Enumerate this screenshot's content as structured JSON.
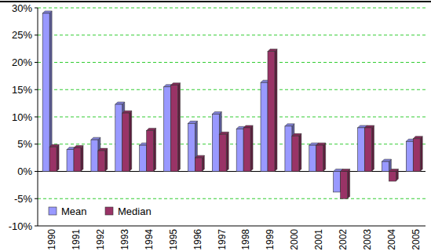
{
  "chart_data": {
    "type": "bar",
    "categories": [
      "1990",
      "1991",
      "1992",
      "1993",
      "1994",
      "1995",
      "1996",
      "1997",
      "1998",
      "1999",
      "2000",
      "2001",
      "2002",
      "2003",
      "2004",
      "2005"
    ],
    "series": [
      {
        "name": "Mean",
        "color": "#9999ff",
        "values": [
          29,
          4,
          5.8,
          12.3,
          4.8,
          15.5,
          8.8,
          10.5,
          7.8,
          16.3,
          8.3,
          4.8,
          -3.8,
          8,
          1.8,
          5.5
        ]
      },
      {
        "name": "Median",
        "color": "#993366",
        "values": [
          4.5,
          4.3,
          3.8,
          10.7,
          7.5,
          15.8,
          2.5,
          6.8,
          8,
          22,
          6.5,
          4.8,
          -5,
          8,
          -1.8,
          6
        ]
      }
    ],
    "ylim": [
      -10,
      30
    ],
    "yticks": [
      {
        "value": -10,
        "label": "-10%"
      },
      {
        "value": -5,
        "label": "-5%"
      },
      {
        "value": 0,
        "label": "0%"
      },
      {
        "value": 5,
        "label": "5%"
      },
      {
        "value": 10,
        "label": "10%"
      },
      {
        "value": 15,
        "label": "15%"
      },
      {
        "value": 20,
        "label": "20%"
      },
      {
        "value": 25,
        "label": "25%"
      },
      {
        "value": 30,
        "label": "30%"
      }
    ],
    "grid": true,
    "legend": "bottom-left"
  }
}
